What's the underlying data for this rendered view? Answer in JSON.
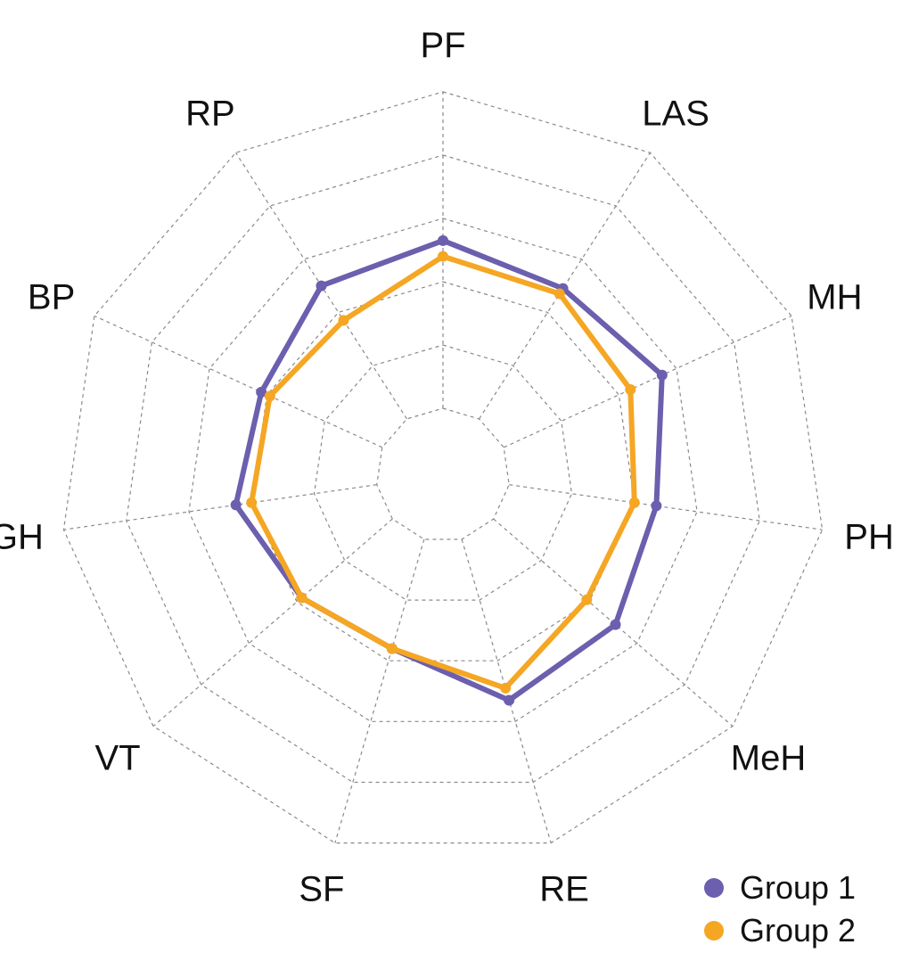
{
  "chart_data": {
    "type": "radar",
    "title": "",
    "axes": [
      "PF",
      "LAS",
      "MH",
      "PH",
      "MeH",
      "RE",
      "SF",
      "VT",
      "GH",
      "BP",
      "RP"
    ],
    "range": [
      0,
      5
    ],
    "rings": 5,
    "grid": true,
    "grid_style": "dashed",
    "legend_position": "bottom-right",
    "series": [
      {
        "name": "Group 1",
        "color": "#6b5fae",
        "values": [
          2.65,
          2.45,
          2.75,
          2.35,
          2.55,
          2.65,
          1.8,
          1.9,
          2.25,
          2.1,
          2.5
        ]
      },
      {
        "name": "Group 2",
        "color": "#f5a623",
        "values": [
          2.4,
          2.35,
          2.2,
          2.0,
          1.95,
          2.45,
          1.8,
          1.9,
          2.0,
          1.95,
          1.85
        ]
      }
    ]
  },
  "legend": {
    "items": [
      {
        "label": "Group 1",
        "color": "#6b5fae"
      },
      {
        "label": "Group 2",
        "color": "#f5a623"
      }
    ]
  }
}
